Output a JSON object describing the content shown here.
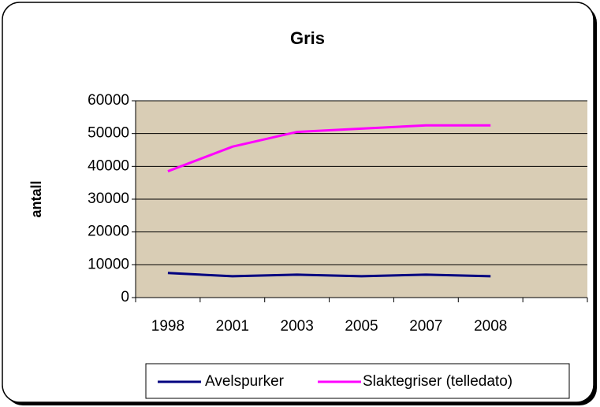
{
  "chart_data": {
    "type": "line",
    "title": "Gris",
    "y_label": "antall",
    "categories": [
      "1998",
      "2001",
      "2003",
      "2005",
      "2007",
      "2008",
      null
    ],
    "series": [
      {
        "name": "Avelspurker",
        "color": "#000080",
        "values": [
          7500,
          6500,
          7000,
          6500,
          7000,
          6500,
          null
        ]
      },
      {
        "name": "Slaktegriser (telledato)",
        "color": "#ff00ff",
        "values": [
          38500,
          46000,
          50500,
          51500,
          52500,
          52500,
          null
        ]
      }
    ],
    "ylim": [
      0,
      60000
    ],
    "yticks": [
      0,
      10000,
      20000,
      30000,
      40000,
      50000,
      60000
    ],
    "grid": true,
    "legend": "bottom"
  }
}
